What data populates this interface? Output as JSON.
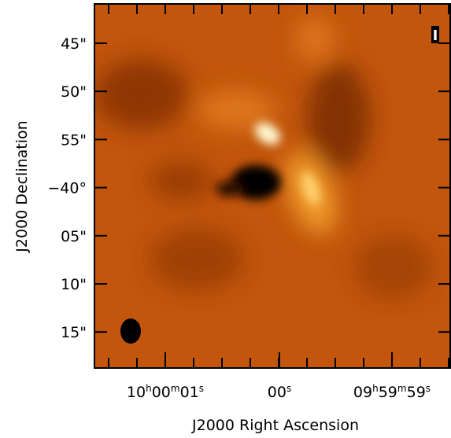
{
  "image": {
    "stokes": "I",
    "x_axis": {
      "label": "J2000 Right Ascension",
      "ticks": [
        [
          "10",
          "h",
          "00",
          "m",
          "01",
          "s"
        ],
        [
          "00",
          "s"
        ],
        [
          "09",
          "h",
          "59",
          "m",
          "59",
          "s"
        ]
      ]
    },
    "y_axis": {
      "label": "J2000 Declination",
      "ticks": [
        [
          "45\""
        ],
        [
          "50\""
        ],
        [
          "55\""
        ],
        [
          "−40°"
        ],
        [
          "05\""
        ],
        [
          "10\""
        ],
        [
          "15\""
        ]
      ]
    }
  }
}
